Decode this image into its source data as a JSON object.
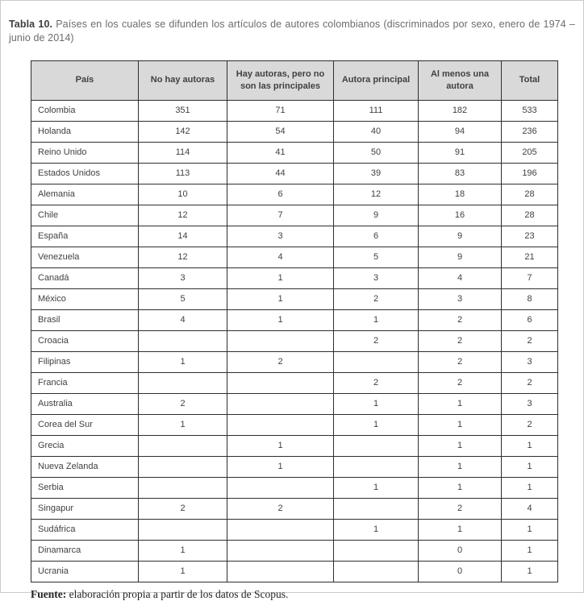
{
  "title": {
    "label": "Tabla 10.",
    "text": "Países en los cuales se difunden los artículos de autores colombianos (discriminados por sexo, enero de 1974 – junio de 2014)"
  },
  "table": {
    "headers": [
      "País",
      "No hay autoras",
      "Hay autoras, pero no son las principales",
      "Autora principal",
      "Al menos una autora",
      "Total"
    ],
    "rows": [
      [
        "Colombia",
        "351",
        "71",
        "111",
        "182",
        "533"
      ],
      [
        "Holanda",
        "142",
        "54",
        "40",
        "94",
        "236"
      ],
      [
        "Reino Unido",
        "114",
        "41",
        "50",
        "91",
        "205"
      ],
      [
        "Estados Unidos",
        "113",
        "44",
        "39",
        "83",
        "196"
      ],
      [
        "Alemania",
        "10",
        "6",
        "12",
        "18",
        "28"
      ],
      [
        "Chile",
        "12",
        "7",
        "9",
        "16",
        "28"
      ],
      [
        "España",
        "14",
        "3",
        "6",
        "9",
        "23"
      ],
      [
        "Venezuela",
        "12",
        "4",
        "5",
        "9",
        "21"
      ],
      [
        "Canadá",
        "3",
        "1",
        "3",
        "4",
        "7"
      ],
      [
        "México",
        "5",
        "1",
        "2",
        "3",
        "8"
      ],
      [
        "Brasil",
        "4",
        "1",
        "1",
        "2",
        "6"
      ],
      [
        "Croacia",
        "",
        "",
        "2",
        "2",
        "2"
      ],
      [
        "Filipinas",
        "1",
        "2",
        "",
        "2",
        "3"
      ],
      [
        "Francia",
        "",
        "",
        "2",
        "2",
        "2"
      ],
      [
        "Australia",
        "2",
        "",
        "1",
        "1",
        "3"
      ],
      [
        "Corea del Sur",
        "1",
        "",
        "1",
        "1",
        "2"
      ],
      [
        "Grecia",
        "",
        "1",
        "",
        "1",
        "1"
      ],
      [
        "Nueva Zelanda",
        "",
        "1",
        "",
        "1",
        "1"
      ],
      [
        "Serbia",
        "",
        "",
        "1",
        "1",
        "1"
      ],
      [
        "Singapur",
        "2",
        "2",
        "",
        "2",
        "4"
      ],
      [
        "Sudáfrica",
        "",
        "",
        "1",
        "1",
        "1"
      ],
      [
        "Dinamarca",
        "1",
        "",
        "",
        "0",
        "1"
      ],
      [
        "Ucrania",
        "1",
        "",
        "",
        "0",
        "1"
      ]
    ]
  },
  "footer": {
    "label": "Fuente:",
    "text": "elaboración propia a partir de los datos de Scopus."
  },
  "colors": {
    "header_bg": "#d9d9d9",
    "table_border": "#2e2e30",
    "cell_text": "#414042",
    "caption_text": "#6a6c6e",
    "page_frame": "#c9cacb"
  }
}
